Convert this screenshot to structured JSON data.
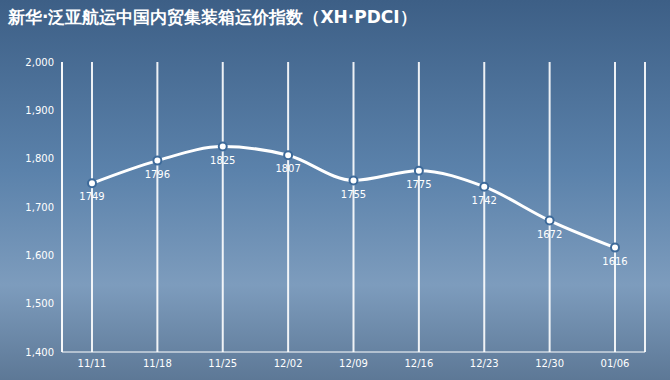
{
  "chart_data": {
    "type": "line",
    "title": "新华·泛亚航运中国内贸集装箱运价指数（XH·PDCI）",
    "categories": [
      "11/11",
      "11/18",
      "11/25",
      "12/02",
      "12/09",
      "12/16",
      "12/23",
      "12/30",
      "01/06"
    ],
    "values": [
      1749,
      1796,
      1825,
      1807,
      1755,
      1775,
      1742,
      1672,
      1616
    ],
    "color": "#ffffff",
    "ylim": [
      1400,
      2000
    ],
    "yticks": [
      {
        "value": 1400,
        "label": "1,400"
      },
      {
        "value": 1500,
        "label": "1,500"
      },
      {
        "value": 1600,
        "label": "1,600"
      },
      {
        "value": 1700,
        "label": "1,700"
      },
      {
        "value": 1800,
        "label": "1,800"
      },
      {
        "value": 1900,
        "label": "1,900"
      },
      {
        "value": 2000,
        "label": "2,000"
      }
    ],
    "grid": true,
    "data_labels": true,
    "marker": "circle"
  }
}
